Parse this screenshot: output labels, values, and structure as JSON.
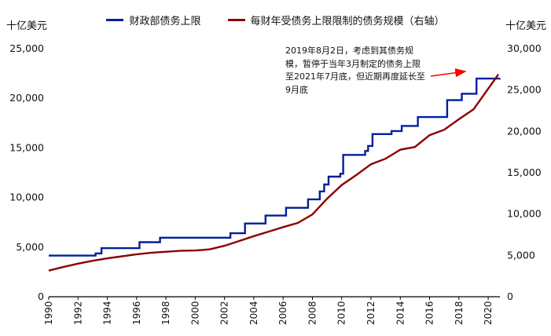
{
  "units": {
    "left": "十亿美元",
    "right": "十亿美元"
  },
  "legend": [
    {
      "label": "财政部债务上限",
      "color": "#001f9b"
    },
    {
      "label": "每财年受债务上限限制的债务规模（右轴）",
      "color": "#8b0000"
    }
  ],
  "annotation": {
    "text": "2019年8月2日，考虑到其债务规模，暂停于当年3月制定的债务上限至2021年7月底，但近期再度延长至9月底",
    "arrow_color": "#ff0000"
  },
  "chart_data": {
    "type": "line",
    "title": "",
    "x_range": [
      1990,
      2020.8
    ],
    "x_ticks": [
      1990,
      1992,
      1994,
      1996,
      1998,
      2000,
      2002,
      2004,
      2006,
      2008,
      2010,
      2012,
      2014,
      2016,
      2018,
      2020
    ],
    "left_axis": {
      "label": "十亿美元",
      "min": 0,
      "max": 25000,
      "tick_step": 5000
    },
    "right_axis": {
      "label": "十亿美元",
      "min": 0,
      "max": 30000,
      "tick_step": 5000
    },
    "grid": false,
    "legend_position": "top",
    "series": [
      {
        "name": "财政部债务上限",
        "axis": "left",
        "color": "#001f9b",
        "style": "step",
        "points": [
          [
            1990.0,
            4145
          ],
          [
            1993.2,
            4370
          ],
          [
            1993.6,
            4900
          ],
          [
            1996.2,
            5500
          ],
          [
            1997.6,
            5950
          ],
          [
            2002.4,
            6400
          ],
          [
            2003.4,
            7384
          ],
          [
            2004.8,
            8184
          ],
          [
            2006.2,
            8965
          ],
          [
            2007.7,
            9815
          ],
          [
            2008.5,
            10615
          ],
          [
            2008.8,
            11315
          ],
          [
            2009.1,
            12104
          ],
          [
            2009.9,
            12394
          ],
          [
            2010.1,
            14294
          ],
          [
            2011.6,
            14694
          ],
          [
            2011.8,
            15194
          ],
          [
            2012.1,
            16394
          ],
          [
            2013.4,
            16699
          ],
          [
            2014.1,
            17212
          ],
          [
            2015.2,
            18113
          ],
          [
            2017.2,
            19809
          ],
          [
            2018.2,
            20456
          ],
          [
            2019.2,
            21988
          ],
          [
            2020.8,
            22000
          ]
        ]
      },
      {
        "name": "每财年受债务上限限制的债务规模（右轴）",
        "axis": "right",
        "color": "#8b0000",
        "style": "line",
        "points": [
          [
            1990,
            3161
          ],
          [
            1991,
            3600
          ],
          [
            1992,
            4003
          ],
          [
            1993,
            4351
          ],
          [
            1994,
            4644
          ],
          [
            1995,
            4886
          ],
          [
            1996,
            5137
          ],
          [
            1997,
            5328
          ],
          [
            1998,
            5439
          ],
          [
            1999,
            5568
          ],
          [
            2000,
            5592
          ],
          [
            2001,
            5733
          ],
          [
            2002,
            6161
          ],
          [
            2003,
            6738
          ],
          [
            2004,
            7333
          ],
          [
            2005,
            7871
          ],
          [
            2006,
            8421
          ],
          [
            2007,
            8921
          ],
          [
            2008,
            9960
          ],
          [
            2009,
            11853
          ],
          [
            2010,
            13511
          ],
          [
            2011,
            14722
          ],
          [
            2012,
            16027
          ],
          [
            2013,
            16700
          ],
          [
            2014,
            17781
          ],
          [
            2015,
            18113
          ],
          [
            2016,
            19539
          ],
          [
            2017,
            20206
          ],
          [
            2018,
            21461
          ],
          [
            2019,
            22669
          ],
          [
            2020.7,
            26900
          ]
        ]
      }
    ]
  }
}
